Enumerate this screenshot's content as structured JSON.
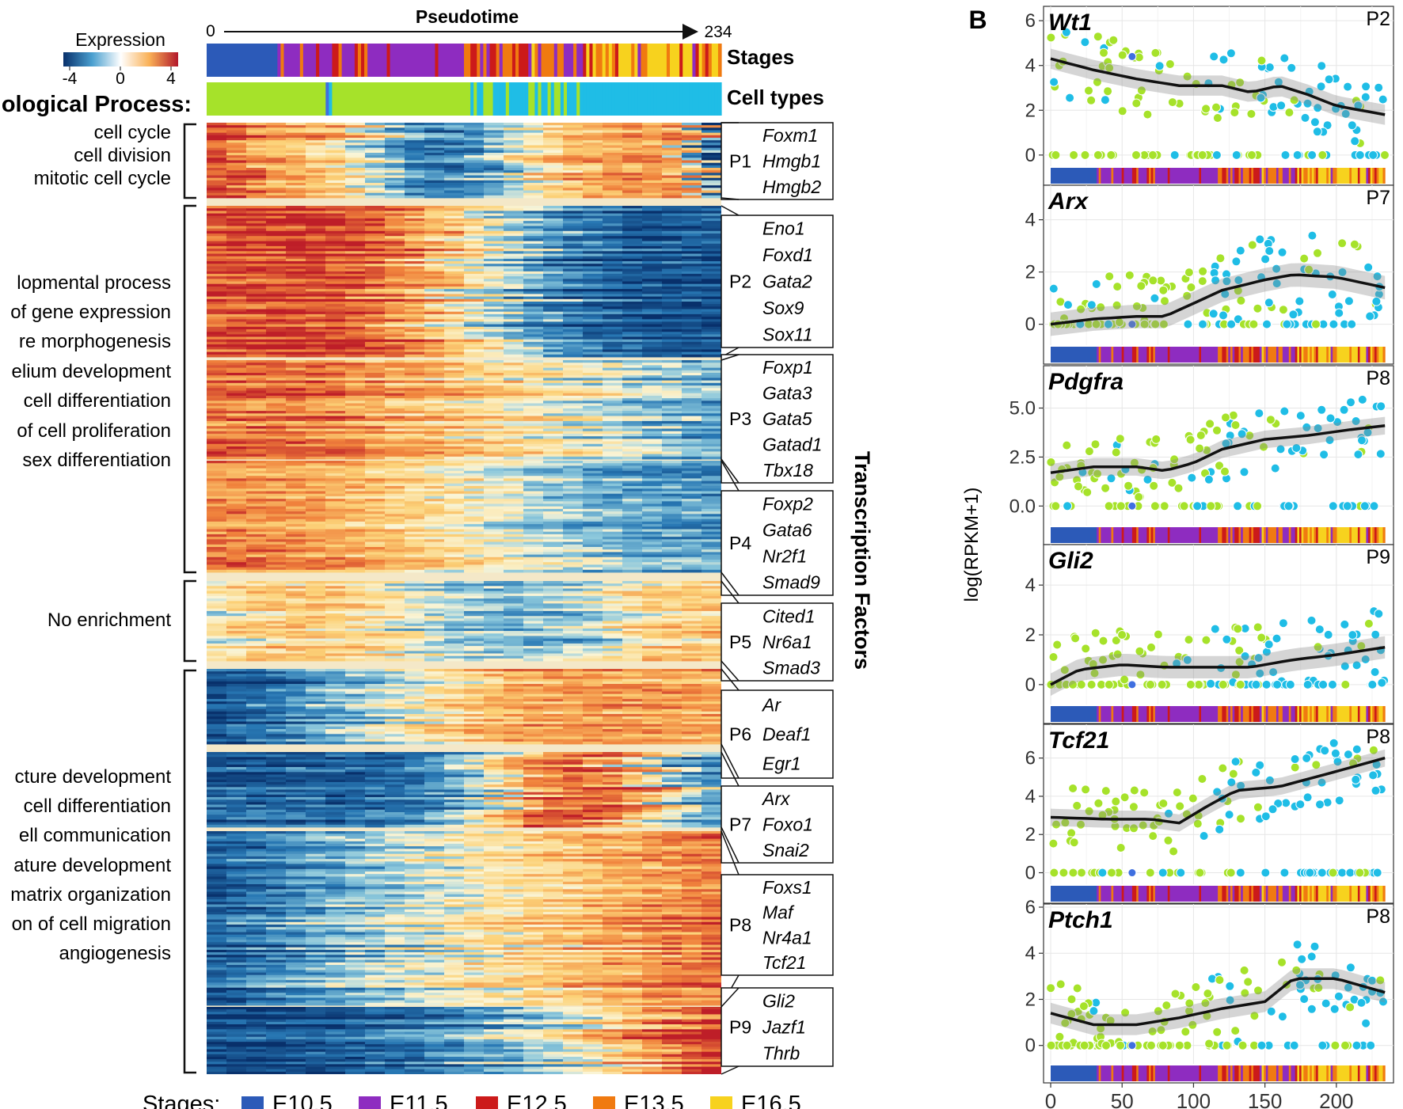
{
  "panel_b_label": "B",
  "colorbar": {
    "title": "Expression",
    "ticks": [
      "-4",
      "0",
      "4"
    ]
  },
  "pseudotime": {
    "title": "Pseudotime",
    "start": "0",
    "end": "234"
  },
  "annotation_rows": {
    "stages": "Stages",
    "cell_types": "Cell types"
  },
  "bp_header": "ological Process:",
  "tf_header": "Transcription Factors",
  "bp_groups": [
    {
      "lines": [
        "cell cycle",
        "cell division",
        "mitotic cell cycle"
      ]
    },
    {
      "lines": [
        "lopmental process",
        "of gene expression",
        "re morphogenesis",
        "elium development",
        "cell differentiation",
        "of cell proliferation",
        "sex differentiation"
      ]
    },
    {
      "lines": [
        "No enrichment"
      ]
    },
    {
      "lines": [
        "cture development",
        "cell differentiation",
        "ell communication",
        "ature development",
        "matrix organization",
        "on of cell migration",
        "angiogenesis"
      ]
    }
  ],
  "clusters": [
    {
      "id": "P1",
      "tfs": [
        "Foxm1",
        "Hmgb1",
        "Hmgb2"
      ]
    },
    {
      "id": "P2",
      "tfs": [
        "Eno1",
        "Foxd1",
        "Gata2",
        "Sox9",
        "Sox11"
      ]
    },
    {
      "id": "P3",
      "tfs": [
        "Foxp1",
        "Gata3",
        "Gata5",
        "Gatad1",
        "Tbx18"
      ]
    },
    {
      "id": "P4",
      "tfs": [
        "Foxp2",
        "Gata6",
        "Nr2f1",
        "Smad9"
      ]
    },
    {
      "id": "P5",
      "tfs": [
        "Cited1",
        "Nr6a1",
        "Smad3"
      ]
    },
    {
      "id": "P6",
      "tfs": [
        "Ar",
        "Deaf1",
        "Egr1"
      ]
    },
    {
      "id": "P7",
      "tfs": [
        "Arx",
        "Foxo1",
        "Snai2"
      ]
    },
    {
      "id": "P8",
      "tfs": [
        "Foxs1",
        "Maf",
        "Nr4a1",
        "Tcf21"
      ]
    },
    {
      "id": "P9",
      "tfs": [
        "Gli2",
        "Jazf1",
        "Thrb"
      ]
    }
  ],
  "stage_legend": {
    "title": "Stages:",
    "items": [
      {
        "label": "E10.5",
        "color": "#2c5ab8"
      },
      {
        "label": "E11.5",
        "color": "#8e2cc0"
      },
      {
        "label": "E12.5",
        "color": "#cc1a1a"
      },
      {
        "label": "E13.5",
        "color": "#f07a10"
      },
      {
        "label": "E16.5",
        "color": "#f7d21e"
      }
    ]
  },
  "cell_type_colors": [
    "#a6e22a",
    "#1fbde6",
    "#3f6fe0"
  ],
  "panel_b": {
    "ylabel": "log(RPKM+1)",
    "xticks": [
      "0",
      "50",
      "100",
      "150",
      "200"
    ]
  },
  "chart_data": [
    {
      "type": "heatmap",
      "title": "",
      "xlabel": "Pseudotime",
      "x_range": [
        0,
        234
      ],
      "color_scale": {
        "min": -4,
        "max": 4,
        "colors": [
          "#08306b",
          "#ffffff",
          "#b2182b"
        ]
      },
      "row_clusters": [
        "P1",
        "P2",
        "P3",
        "P4",
        "P5",
        "P6",
        "P7",
        "P8",
        "P9"
      ]
    },
    {
      "type": "scatter",
      "gene": "Wt1",
      "pattern": "P2",
      "ylim": [
        -0.5,
        6.5
      ],
      "yticks": [
        0,
        2,
        4,
        6
      ],
      "xlim": [
        -5,
        240
      ],
      "smooth": [
        [
          0,
          4.3
        ],
        [
          30,
          3.8
        ],
        [
          60,
          3.4
        ],
        [
          90,
          3.1
        ],
        [
          120,
          3.1
        ],
        [
          140,
          2.8
        ],
        [
          160,
          3.1
        ],
        [
          180,
          2.7
        ],
        [
          200,
          2.2
        ],
        [
          234,
          1.8
        ]
      ]
    },
    {
      "type": "scatter",
      "gene": "Arx",
      "pattern": "P7",
      "ylim": [
        -0.8,
        5.2
      ],
      "yticks": [
        0,
        2,
        4
      ],
      "xlim": [
        -5,
        240
      ],
      "smooth": [
        [
          0,
          0
        ],
        [
          30,
          0.2
        ],
        [
          60,
          0.3
        ],
        [
          80,
          0.3
        ],
        [
          100,
          0.8
        ],
        [
          120,
          1.3
        ],
        [
          150,
          1.7
        ],
        [
          170,
          1.9
        ],
        [
          200,
          1.8
        ],
        [
          234,
          1.4
        ]
      ]
    },
    {
      "type": "scatter",
      "gene": "Pdgfra",
      "pattern": "P8",
      "ylim": [
        -1.0,
        7.0
      ],
      "yticks": [
        0,
        2.5,
        5.0
      ],
      "ytick_labels": [
        "0.0",
        "2.5",
        "5.0"
      ],
      "xlim": [
        -5,
        240
      ],
      "smooth": [
        [
          0,
          1.7
        ],
        [
          30,
          2.0
        ],
        [
          60,
          2.0
        ],
        [
          80,
          1.8
        ],
        [
          100,
          2.2
        ],
        [
          120,
          2.9
        ],
        [
          150,
          3.4
        ],
        [
          180,
          3.6
        ],
        [
          210,
          3.9
        ],
        [
          234,
          4.1
        ]
      ]
    },
    {
      "type": "scatter",
      "gene": "Gli2",
      "pattern": "P9",
      "ylim": [
        -0.8,
        5.5
      ],
      "yticks": [
        0,
        2,
        4
      ],
      "xlim": [
        -5,
        240
      ],
      "smooth": [
        [
          0,
          0
        ],
        [
          20,
          0.6
        ],
        [
          50,
          0.8
        ],
        [
          80,
          0.7
        ],
        [
          110,
          0.7
        ],
        [
          140,
          0.7
        ],
        [
          170,
          1.0
        ],
        [
          200,
          1.2
        ],
        [
          234,
          1.5
        ]
      ]
    },
    {
      "type": "scatter",
      "gene": "Tcf21",
      "pattern": "P8",
      "ylim": [
        -0.6,
        7.6
      ],
      "yticks": [
        0,
        2,
        4,
        6
      ],
      "xlim": [
        -5,
        240
      ],
      "smooth": [
        [
          0,
          2.9
        ],
        [
          40,
          2.8
        ],
        [
          70,
          2.8
        ],
        [
          90,
          2.6
        ],
        [
          110,
          3.5
        ],
        [
          130,
          4.3
        ],
        [
          160,
          4.5
        ],
        [
          200,
          5.3
        ],
        [
          234,
          6.0
        ]
      ]
    },
    {
      "type": "scatter",
      "gene": "Ptch1",
      "pattern": "P8",
      "ylim": [
        -0.8,
        6.0
      ],
      "yticks": [
        0,
        2,
        4,
        6
      ],
      "xlim": [
        -5,
        240
      ],
      "smooth": [
        [
          0,
          1.4
        ],
        [
          30,
          0.9
        ],
        [
          60,
          0.9
        ],
        [
          90,
          1.2
        ],
        [
          120,
          1.6
        ],
        [
          150,
          1.9
        ],
        [
          170,
          2.9
        ],
        [
          200,
          2.9
        ],
        [
          234,
          2.3
        ]
      ]
    }
  ]
}
